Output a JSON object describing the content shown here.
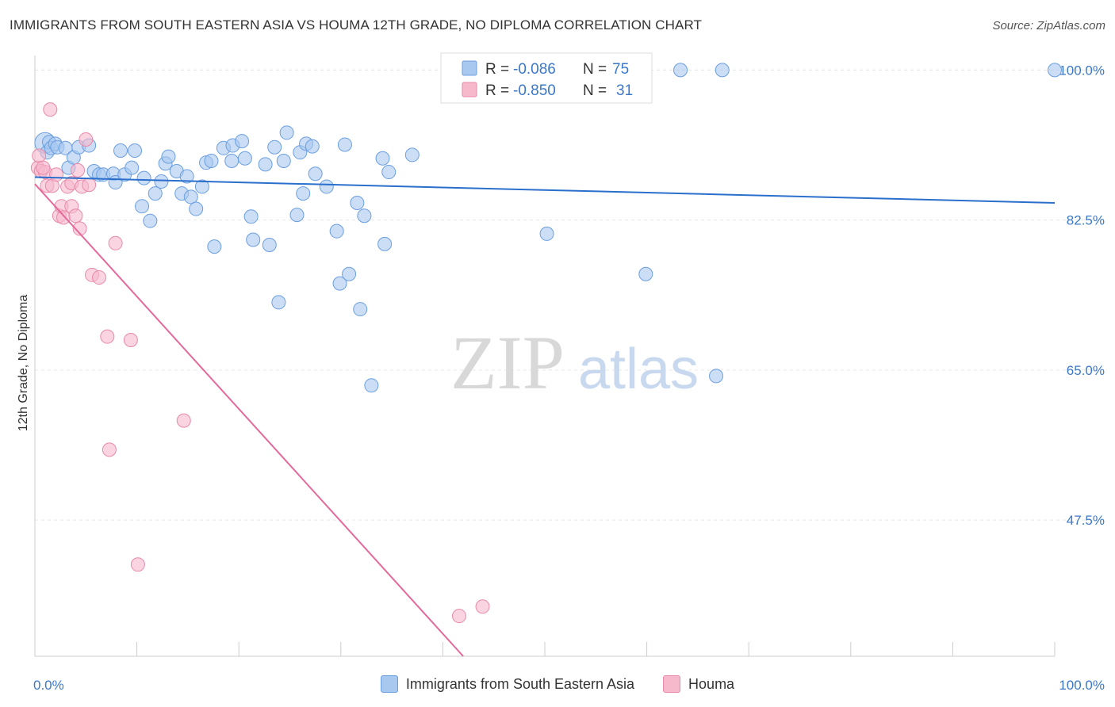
{
  "title": "IMMIGRANTS FROM SOUTH EASTERN ASIA VS HOUMA 12TH GRADE, NO DIPLOMA CORRELATION CHART",
  "source": "Source: ZipAtlas.com",
  "watermark": {
    "zip": "ZIP",
    "atlas": "atlas"
  },
  "colors": {
    "blue_fill": "#a9c8f0",
    "blue_stroke": "#6b9fe0",
    "blue_line": "#2b6fcc",
    "pink_fill": "#f6b8cb",
    "pink_stroke": "#e88aaa",
    "pink_line": "#e36a9a",
    "axis_label": "#3b78c9"
  },
  "legend_box": {
    "rows": [
      {
        "r_label": "R =",
        "r_value": "-0.086",
        "n_label": "N =",
        "n_value": "75"
      },
      {
        "r_label": "R =",
        "r_value": "-0.850",
        "n_label": "N =",
        "n_value": "31"
      }
    ]
  },
  "legend_bottom": [
    "Immigrants from South Eastern Asia",
    "Houma"
  ],
  "chart_data": {
    "type": "scatter",
    "ylabel": "12th Grade, No Diploma",
    "x_tick_labels": [
      "0.0%",
      "100.0%"
    ],
    "y_tick_labels": [
      "100.0%",
      "82.5%",
      "65.0%",
      "47.5%"
    ],
    "y_ticks": [
      100.0,
      82.5,
      65.0,
      47.5
    ],
    "xlim": [
      0,
      100
    ],
    "ylim": [
      31.6,
      101.7
    ],
    "grid": true,
    "series": [
      {
        "name": "Immigrants from South Eastern Asia",
        "points": [
          [
            1.0,
            91.5
          ],
          [
            1.2,
            90.4
          ],
          [
            1.4,
            91.6
          ],
          [
            1.6,
            90.9
          ],
          [
            2.0,
            91.4
          ],
          [
            2.2,
            91.0
          ],
          [
            3.0,
            90.9
          ],
          [
            3.3,
            88.6
          ],
          [
            3.8,
            89.8
          ],
          [
            4.3,
            91.0
          ],
          [
            5.3,
            91.2
          ],
          [
            5.8,
            88.2
          ],
          [
            6.3,
            87.8
          ],
          [
            6.7,
            87.8
          ],
          [
            7.7,
            87.9
          ],
          [
            7.9,
            86.9
          ],
          [
            8.4,
            90.6
          ],
          [
            8.8,
            87.8
          ],
          [
            9.5,
            88.6
          ],
          [
            9.8,
            90.6
          ],
          [
            10.5,
            84.1
          ],
          [
            10.7,
            87.4
          ],
          [
            11.3,
            82.4
          ],
          [
            11.8,
            85.6
          ],
          [
            12.4,
            87.0
          ],
          [
            12.8,
            89.1
          ],
          [
            13.1,
            89.9
          ],
          [
            13.9,
            88.2
          ],
          [
            14.4,
            85.6
          ],
          [
            14.9,
            87.6
          ],
          [
            15.3,
            85.2
          ],
          [
            15.8,
            83.8
          ],
          [
            16.4,
            86.4
          ],
          [
            16.8,
            89.2
          ],
          [
            17.3,
            89.4
          ],
          [
            17.6,
            79.4
          ],
          [
            18.5,
            90.9
          ],
          [
            19.3,
            89.4
          ],
          [
            19.4,
            91.2
          ],
          [
            20.3,
            91.7
          ],
          [
            20.6,
            89.7
          ],
          [
            21.2,
            82.9
          ],
          [
            21.4,
            80.2
          ],
          [
            22.6,
            89.0
          ],
          [
            23.0,
            79.6
          ],
          [
            23.5,
            91.0
          ],
          [
            23.9,
            72.9
          ],
          [
            24.4,
            89.4
          ],
          [
            24.7,
            92.7
          ],
          [
            25.7,
            83.1
          ],
          [
            26.0,
            90.4
          ],
          [
            26.3,
            85.6
          ],
          [
            26.6,
            91.4
          ],
          [
            27.2,
            91.1
          ],
          [
            27.5,
            87.9
          ],
          [
            28.6,
            86.4
          ],
          [
            29.6,
            81.2
          ],
          [
            29.9,
            75.1
          ],
          [
            30.4,
            91.3
          ],
          [
            30.8,
            76.2
          ],
          [
            31.6,
            84.5
          ],
          [
            31.9,
            72.1
          ],
          [
            32.3,
            83.0
          ],
          [
            33.0,
            63.2
          ],
          [
            34.1,
            89.7
          ],
          [
            34.3,
            79.7
          ],
          [
            34.7,
            88.1
          ],
          [
            37.0,
            90.1
          ],
          [
            43.6,
            100.0
          ],
          [
            50.2,
            80.9
          ],
          [
            59.9,
            76.2
          ],
          [
            63.3,
            100.0
          ],
          [
            66.8,
            64.3
          ],
          [
            67.4,
            100.0
          ],
          [
            100.0,
            100.0
          ]
        ],
        "trend": {
          "x": [
            0,
            100
          ],
          "y": [
            87.5,
            84.5
          ]
        }
      },
      {
        "name": "Houma",
        "points": [
          [
            0.3,
            88.6
          ],
          [
            0.6,
            88.2
          ],
          [
            1.0,
            88.1
          ],
          [
            1.2,
            86.5
          ],
          [
            1.5,
            95.4
          ],
          [
            1.7,
            86.5
          ],
          [
            2.1,
            87.8
          ],
          [
            2.4,
            83.0
          ],
          [
            2.6,
            84.1
          ],
          [
            2.8,
            82.8
          ],
          [
            3.2,
            86.4
          ],
          [
            3.6,
            84.1
          ],
          [
            3.6,
            86.8
          ],
          [
            4.0,
            83.0
          ],
          [
            4.2,
            88.3
          ],
          [
            4.4,
            81.5
          ],
          [
            4.6,
            86.4
          ],
          [
            5.0,
            91.9
          ],
          [
            5.3,
            86.6
          ],
          [
            5.6,
            76.1
          ],
          [
            6.3,
            75.8
          ],
          [
            7.1,
            68.9
          ],
          [
            7.3,
            55.7
          ],
          [
            7.9,
            79.8
          ],
          [
            9.4,
            68.5
          ],
          [
            10.1,
            42.3
          ],
          [
            14.6,
            59.1
          ],
          [
            41.6,
            36.3
          ],
          [
            43.9,
            37.4
          ],
          [
            0.4,
            90.0
          ],
          [
            0.8,
            88.6
          ]
        ],
        "trend": {
          "x": [
            0,
            42
          ],
          "y": [
            86.7,
            31.6
          ]
        }
      }
    ]
  }
}
